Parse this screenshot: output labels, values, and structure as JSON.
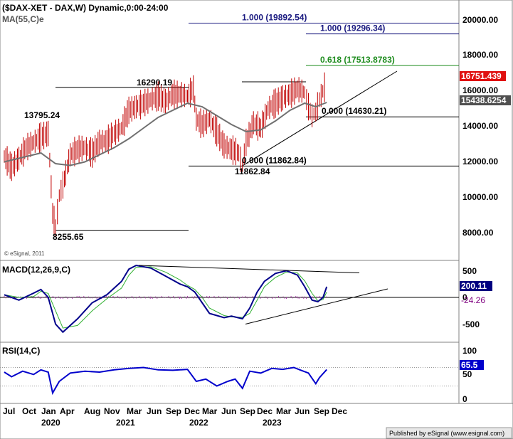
{
  "chart_data": [
    {
      "type": "line",
      "panel": "price",
      "title": "($DAX-XET - DAX,W) Dynamic,0:00-24:00",
      "subtitle": "MA(55,C)e",
      "copyright": "© eSignal, 2011",
      "ylim": [
        7000,
        21000
      ],
      "yticks": [
        "20000.00",
        "18000.00",
        "16000.00",
        "14000.00",
        "12000.00",
        "10000.00",
        "8000.00"
      ],
      "price_series_x": [
        2019.5,
        2019.6,
        2019.7,
        2019.8,
        2019.9,
        2020.0,
        2020.1,
        2020.16,
        2020.2,
        2020.25,
        2020.3,
        2020.4,
        2020.5,
        2020.6,
        2020.7,
        2020.8,
        2020.9,
        2021.0,
        2021.1,
        2021.2,
        2021.3,
        2021.4,
        2021.5,
        2021.6,
        2021.7,
        2021.8,
        2021.9,
        2022.0,
        2022.08,
        2022.12,
        2022.2,
        2022.3,
        2022.4,
        2022.5,
        2022.6,
        2022.7,
        2022.75,
        2022.8,
        2022.9,
        2023.0,
        2023.1,
        2023.2,
        2023.3,
        2023.4,
        2023.5,
        2023.6,
        2023.65,
        2023.7,
        2023.75,
        2023.8,
        2023.87,
        2023.9
      ],
      "price_series_y": [
        12400,
        11800,
        12300,
        12900,
        13200,
        13500,
        13700,
        9200,
        8400,
        10200,
        10800,
        12500,
        12800,
        12900,
        12600,
        13200,
        13300,
        13700,
        14000,
        15000,
        15200,
        15400,
        15600,
        15800,
        15500,
        15900,
        15900,
        15800,
        16200,
        14500,
        14200,
        14500,
        13800,
        13000,
        12800,
        12600,
        11900,
        13200,
        14300,
        14000,
        15100,
        15400,
        15700,
        15900,
        16200,
        16000,
        15200,
        14700,
        14900,
        15600,
        16300,
        16751
      ],
      "ma_x": [
        2019.5,
        2019.8,
        2020.0,
        2020.2,
        2020.4,
        2020.6,
        2020.8,
        2021.0,
        2021.2,
        2021.4,
        2021.6,
        2021.8,
        2022.0,
        2022.2,
        2022.4,
        2022.6,
        2022.8,
        2023.0,
        2023.2,
        2023.4,
        2023.6,
        2023.75,
        2023.9
      ],
      "ma_y": [
        12100,
        12400,
        12600,
        12000,
        11900,
        12100,
        12500,
        12900,
        13400,
        14000,
        14600,
        15000,
        15400,
        15200,
        14700,
        14200,
        13800,
        13900,
        14400,
        15000,
        15400,
        15200,
        15438
      ],
      "levels": [
        {
          "label": "1.000 (19892.54)",
          "value": 19892.54,
          "color": "#1a1a80"
        },
        {
          "label": "1.000 (19296.34)",
          "value": 19296.34,
          "color": "#1a1a80"
        },
        {
          "label": "0.618 (17513.8783)",
          "value": 17513.88,
          "color": "#1e8c1e"
        },
        {
          "label": "0.000 (14630.21)",
          "value": 14630.21,
          "color": "#000000"
        },
        {
          "label": "0.000 (11862.84)",
          "value": 11862.84,
          "color": "#000000"
        }
      ],
      "annotations": [
        "16290.19",
        "13795.24",
        "8255.65",
        "11862.84"
      ],
      "last_price": "16751.439",
      "last_ma": "15438.6254"
    },
    {
      "type": "line",
      "panel": "macd",
      "title": "MACD(12,26,9,C)",
      "ylim": [
        -800,
        700
      ],
      "yticks": [
        "500",
        "0",
        "-500"
      ],
      "macd_x": [
        2019.5,
        2019.7,
        2019.9,
        2020.0,
        2020.1,
        2020.2,
        2020.3,
        2020.5,
        2020.7,
        2020.9,
        2021.1,
        2021.2,
        2021.3,
        2021.5,
        2021.7,
        2021.9,
        2022.0,
        2022.1,
        2022.2,
        2022.3,
        2022.5,
        2022.6,
        2022.75,
        2022.85,
        2022.95,
        2023.05,
        2023.2,
        2023.35,
        2023.5,
        2023.6,
        2023.7,
        2023.78,
        2023.85,
        2023.9
      ],
      "macd_y": [
        50,
        -50,
        80,
        150,
        0,
        -500,
        -650,
        -400,
        -100,
        50,
        300,
        530,
        600,
        550,
        400,
        250,
        200,
        100,
        -100,
        -300,
        -380,
        -350,
        -400,
        -200,
        100,
        300,
        450,
        500,
        420,
        200,
        -50,
        -80,
        0,
        200
      ],
      "macd_last": "200.11",
      "hist_last": "-24.26"
    },
    {
      "type": "line",
      "panel": "rsi",
      "title": "RSI(14,C)",
      "ylim": [
        0,
        100
      ],
      "yticks": [
        "100",
        "50",
        "0"
      ],
      "rsi_x": [
        2019.5,
        2019.6,
        2019.75,
        2019.9,
        2020.0,
        2020.1,
        2020.16,
        2020.25,
        2020.4,
        2020.6,
        2020.8,
        2021.0,
        2021.2,
        2021.4,
        2021.6,
        2021.8,
        2022.0,
        2022.12,
        2022.25,
        2022.4,
        2022.55,
        2022.65,
        2022.75,
        2022.85,
        2023.0,
        2023.15,
        2023.3,
        2023.45,
        2023.55,
        2023.65,
        2023.75,
        2023.8,
        2023.9
      ],
      "rsi_y": [
        60,
        50,
        62,
        55,
        65,
        60,
        15,
        40,
        58,
        62,
        60,
        65,
        68,
        70,
        65,
        64,
        66,
        40,
        45,
        30,
        40,
        45,
        25,
        62,
        58,
        68,
        66,
        70,
        64,
        58,
        35,
        48,
        65.5
      ],
      "rsi_last": "65.5"
    }
  ],
  "x_axis": {
    "months": [
      "Jul",
      "Oct",
      "Jan",
      "Apr",
      "Aug",
      "Nov",
      "Mar",
      "Jun",
      "Sep",
      "Dec",
      "Mar",
      "Jun",
      "Sep",
      "Dec",
      "Mar",
      "Jun",
      "Sep",
      "Dec"
    ],
    "years": [
      "2020",
      "2021",
      "2022",
      "2023"
    ]
  },
  "footer": "Published by eSignal (www.esignal.com)"
}
